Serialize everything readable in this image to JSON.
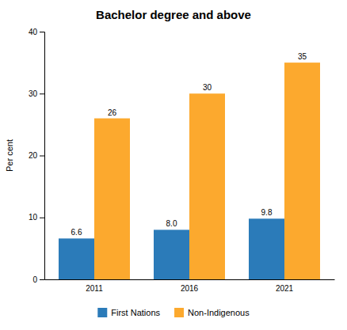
{
  "chart_data": {
    "type": "bar",
    "title": "Bachelor degree and above",
    "categories": [
      "2011",
      "2016",
      "2021"
    ],
    "series": [
      {
        "name": "First Nations",
        "color": "#2B7BB9",
        "values": [
          6.6,
          8.0,
          9.8
        ],
        "value_labels": [
          "6.6",
          "8.0",
          "9.8"
        ]
      },
      {
        "name": "Non-Indigenous",
        "color": "#FCA92E",
        "values": [
          26,
          30,
          35
        ]
      }
    ],
    "ylabel": "Per cent",
    "ylim": [
      0,
      40
    ],
    "yticks": [
      0,
      10,
      20,
      30,
      40
    ],
    "data_labels": true,
    "legend": "bottom",
    "grid": false
  }
}
